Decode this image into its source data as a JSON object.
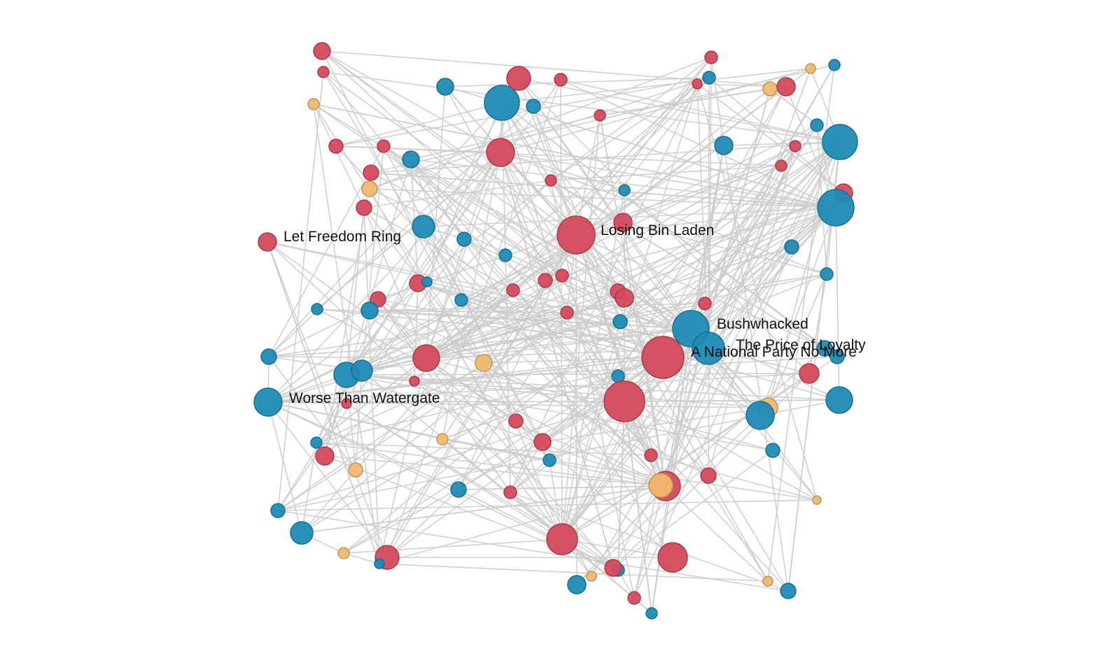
{
  "colors": {
    "liberal": "#1f8bb5",
    "conservative": "#d44a5c",
    "neutral": "#f0b86e",
    "link": "#cccccc"
  },
  "labels": [
    {
      "id": "let-freedom-ring",
      "text": "Let Freedom Ring"
    },
    {
      "id": "losing-bin-laden",
      "text": "Losing Bin Laden"
    },
    {
      "id": "bushwhacked",
      "text": "Bushwhacked"
    },
    {
      "id": "price-of-loyalty",
      "text": "The Price of Loyalty"
    },
    {
      "id": "national-party",
      "text": "A National Party No More"
    },
    {
      "id": "worse-than-watergate",
      "text": "Worse Than Watergate"
    }
  ]
}
